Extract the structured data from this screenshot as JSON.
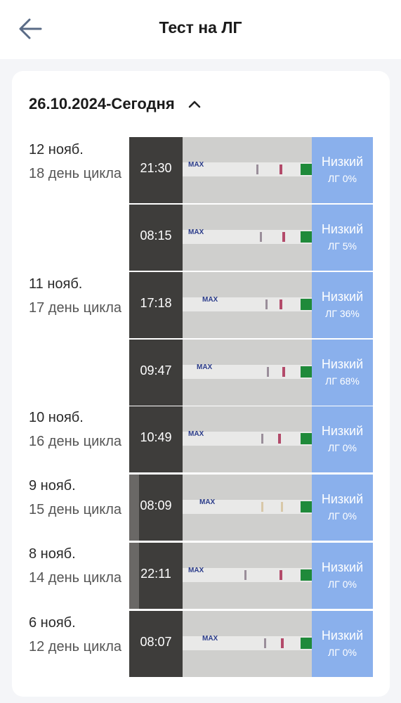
{
  "header": {
    "title": "Тест на ЛГ",
    "back_icon": "arrow-left-icon"
  },
  "range": {
    "label": "26.10.2024-Сегодня",
    "toggle_icon": "chevron-up-icon"
  },
  "days": [
    {
      "date": "12 нояб.",
      "cycle": "18 день цикла"
    },
    {
      "date": "11 нояб.",
      "cycle": "17 день цикла"
    },
    {
      "date": "10 нояб.",
      "cycle": "16 день цикла"
    },
    {
      "date": "9 нояб.",
      "cycle": "15 день цикла"
    },
    {
      "date": "8 нояб.",
      "cycle": "14 день цикла"
    },
    {
      "date": "6 нояб.",
      "cycle": "12 день цикла"
    }
  ],
  "tests": [
    {
      "time": "21:30",
      "level": "Низкий",
      "percent": "ЛГ 0%"
    },
    {
      "time": "08:15",
      "level": "Низкий",
      "percent": "ЛГ 5%"
    },
    {
      "time": "17:18",
      "level": "Низкий",
      "percent": "ЛГ 36%"
    },
    {
      "time": "09:47",
      "level": "Низкий",
      "percent": "ЛГ 68%"
    },
    {
      "time": "10:49",
      "level": "Низкий",
      "percent": "ЛГ 0%"
    },
    {
      "time": "08:09",
      "level": "Низкий",
      "percent": "ЛГ 0%"
    },
    {
      "time": "22:11",
      "level": "Низкий",
      "percent": "ЛГ 0%"
    },
    {
      "time": "08:07",
      "level": "Низкий",
      "percent": "ЛГ 0%"
    }
  ],
  "strip_label": "MAX",
  "colors": {
    "badge": "#8ab0ec",
    "background": "#f4f5f8",
    "card": "#ffffff"
  }
}
